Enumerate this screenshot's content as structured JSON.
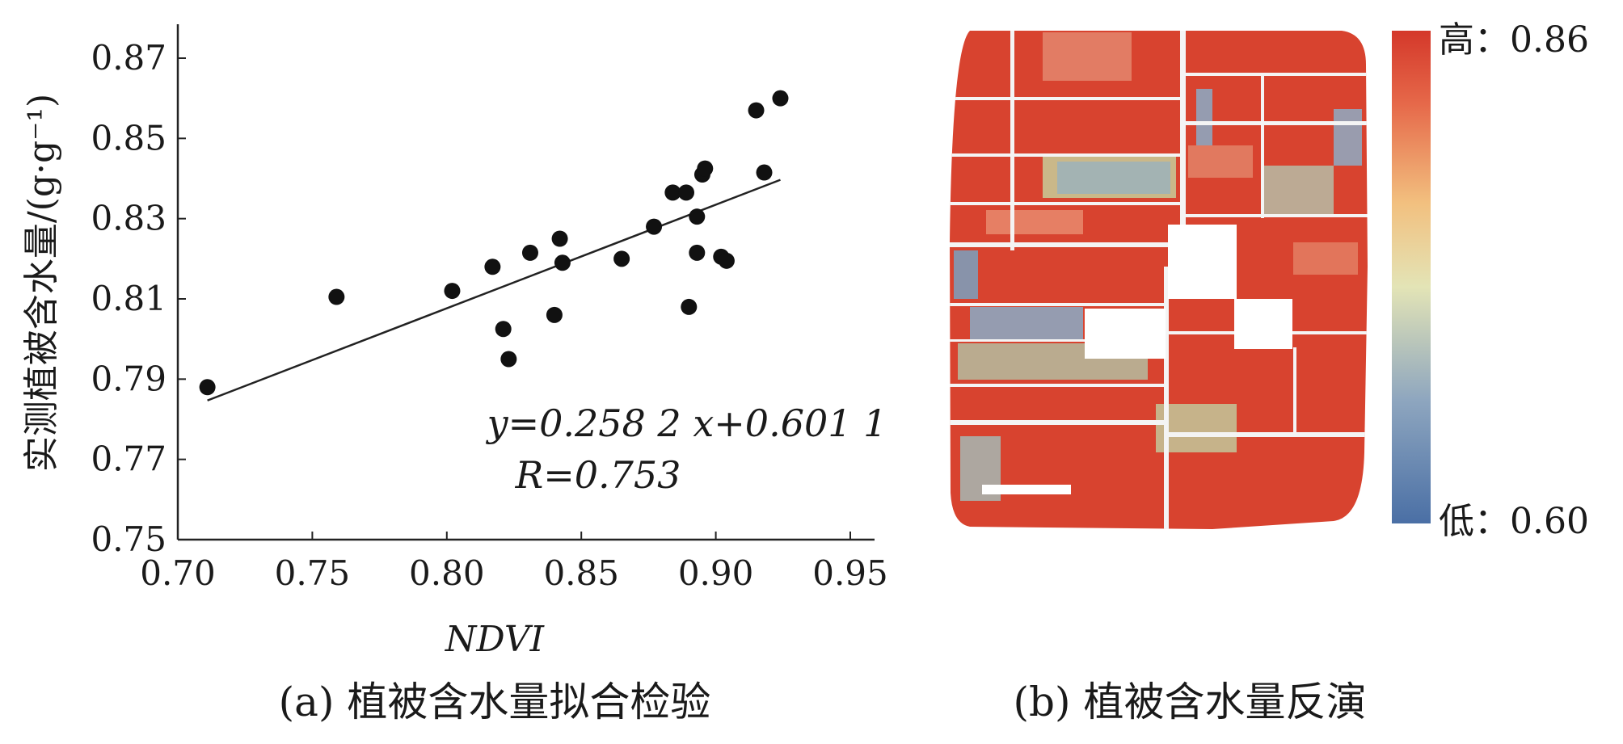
{
  "chart_data": [
    {
      "type": "scatter",
      "xlabel": "NDVI",
      "ylabel": "实测植被含水量/(g·g⁻¹)",
      "xlim": [
        0.7,
        0.95
      ],
      "ylim": [
        0.75,
        0.87
      ],
      "xticks": [
        "0.70",
        "0.75",
        "0.80",
        "0.85",
        "0.90",
        "0.95"
      ],
      "yticks": [
        "0.75",
        "0.77",
        "0.79",
        "0.81",
        "0.83",
        "0.85",
        "0.87"
      ],
      "points": [
        [
          0.711,
          0.788
        ],
        [
          0.759,
          0.8105
        ],
        [
          0.802,
          0.812
        ],
        [
          0.817,
          0.818
        ],
        [
          0.821,
          0.8025
        ],
        [
          0.823,
          0.795
        ],
        [
          0.831,
          0.8215
        ],
        [
          0.84,
          0.806
        ],
        [
          0.842,
          0.825
        ],
        [
          0.843,
          0.819
        ],
        [
          0.865,
          0.82
        ],
        [
          0.877,
          0.828
        ],
        [
          0.884,
          0.8365
        ],
        [
          0.889,
          0.8365
        ],
        [
          0.89,
          0.808
        ],
        [
          0.893,
          0.8305
        ],
        [
          0.893,
          0.8215
        ],
        [
          0.895,
          0.841
        ],
        [
          0.896,
          0.8425
        ],
        [
          0.902,
          0.8205
        ],
        [
          0.904,
          0.8195
        ],
        [
          0.915,
          0.857
        ],
        [
          0.918,
          0.8415
        ],
        [
          0.924,
          0.86
        ]
      ],
      "fit_line": {
        "slope": 0.2582,
        "intercept": 0.6011,
        "x_range": [
          0.711,
          0.924
        ]
      },
      "equation": "y=0.258 2 x+0.601 1",
      "r_label": "R=0.753",
      "caption": "(a) 植被含水量拟合检验"
    },
    {
      "type": "heatmap",
      "colorbar": {
        "min": 0.6,
        "max": 0.86,
        "high_label": "高：0.86",
        "low_label": "低：0.60",
        "colors": [
          "#4a6fa5",
          "#8ea6bf",
          "#e3e4b6",
          "#f2c07f",
          "#e6694a",
          "#d4382a"
        ]
      },
      "caption": "(b) 植被含水量反演"
    }
  ]
}
